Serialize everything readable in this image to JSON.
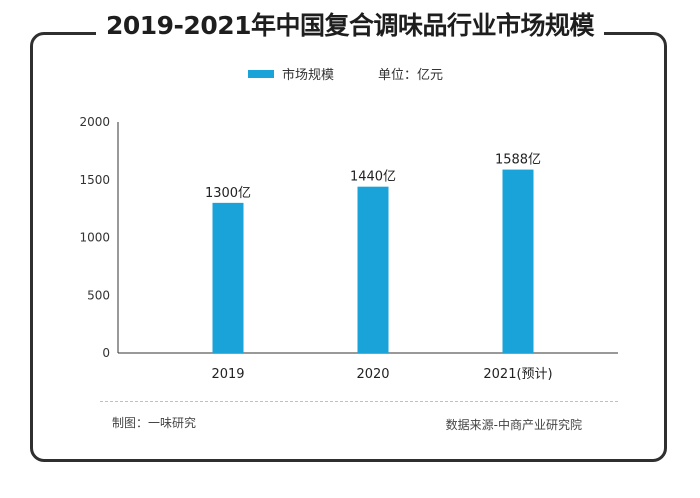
{
  "title": "2019-2021年中国复合调味品行业市场规模",
  "legend": {
    "series_name": "市场规模",
    "unit": "单位：亿元"
  },
  "footer": {
    "source_left": "制图：一味研究",
    "source_right": "数据来源-中商产业研究院"
  },
  "colors": {
    "bar": "#1aa3d9",
    "frame": "#2f2f2f"
  },
  "chart_data": {
    "type": "bar",
    "title": "2019-2021年中国复合调味品行业市场规模",
    "categories": [
      "2019",
      "2020",
      "2021(预计)"
    ],
    "series": [
      {
        "name": "市场规模",
        "values": [
          1300,
          1440,
          1588
        ]
      }
    ],
    "data_labels": [
      "1300亿",
      "1440亿",
      "1588亿"
    ],
    "yticks": [
      "0",
      "500",
      "1000",
      "1500",
      "2000"
    ],
    "ylim": [
      0,
      2000
    ],
    "xlabel": "",
    "ylabel": "",
    "grid": false,
    "legend_position": "top"
  }
}
